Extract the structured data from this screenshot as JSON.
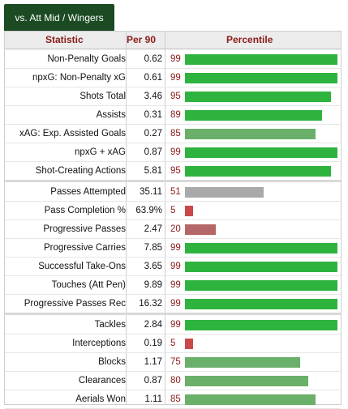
{
  "tab_label": "vs. Att Mid / Wingers",
  "header": {
    "statistic": "Statistic",
    "per90": "Per 90",
    "percentile": "Percentile"
  },
  "colors": {
    "elite": "#2fb33f",
    "good": "#6ab06a",
    "average": "#a9a9a9",
    "poor": "#b56767",
    "very_poor": "#c94848",
    "header_text": "#8b1a1a",
    "tab_bg": "#1b4a23"
  },
  "groups": [
    {
      "rows": [
        {
          "label": "Non-Penalty Goals",
          "per90": "0.62",
          "percentile": "99",
          "tier": "elite"
        },
        {
          "label": "npxG: Non-Penalty xG",
          "per90": "0.61",
          "percentile": "99",
          "tier": "elite"
        },
        {
          "label": "Shots Total",
          "per90": "3.46",
          "percentile": "95",
          "tier": "elite"
        },
        {
          "label": "Assists",
          "per90": "0.31",
          "percentile": "89",
          "tier": "elite"
        },
        {
          "label": "xAG: Exp. Assisted Goals",
          "per90": "0.27",
          "percentile": "85",
          "tier": "good"
        },
        {
          "label": "npxG + xAG",
          "per90": "0.87",
          "percentile": "99",
          "tier": "elite"
        },
        {
          "label": "Shot-Creating Actions",
          "per90": "5.81",
          "percentile": "95",
          "tier": "elite"
        }
      ]
    },
    {
      "rows": [
        {
          "label": "Passes Attempted",
          "per90": "35.11",
          "percentile": "51",
          "tier": "average"
        },
        {
          "label": "Pass Completion %",
          "per90": "63.9%",
          "percentile": "5",
          "tier": "very_poor"
        },
        {
          "label": "Progressive Passes",
          "per90": "2.47",
          "percentile": "20",
          "tier": "poor"
        },
        {
          "label": "Progressive Carries",
          "per90": "7.85",
          "percentile": "99",
          "tier": "elite"
        },
        {
          "label": "Successful Take-Ons",
          "per90": "3.65",
          "percentile": "99",
          "tier": "elite"
        },
        {
          "label": "Touches (Att Pen)",
          "per90": "9.89",
          "percentile": "99",
          "tier": "elite"
        },
        {
          "label": "Progressive Passes Rec",
          "per90": "16.32",
          "percentile": "99",
          "tier": "elite"
        }
      ]
    },
    {
      "rows": [
        {
          "label": "Tackles",
          "per90": "2.84",
          "percentile": "99",
          "tier": "elite"
        },
        {
          "label": "Interceptions",
          "per90": "0.19",
          "percentile": "5",
          "tier": "very_poor"
        },
        {
          "label": "Blocks",
          "per90": "1.17",
          "percentile": "75",
          "tier": "good"
        },
        {
          "label": "Clearances",
          "per90": "0.87",
          "percentile": "80",
          "tier": "good"
        },
        {
          "label": "Aerials Won",
          "per90": "1.11",
          "percentile": "85",
          "tier": "good"
        }
      ]
    }
  ]
}
